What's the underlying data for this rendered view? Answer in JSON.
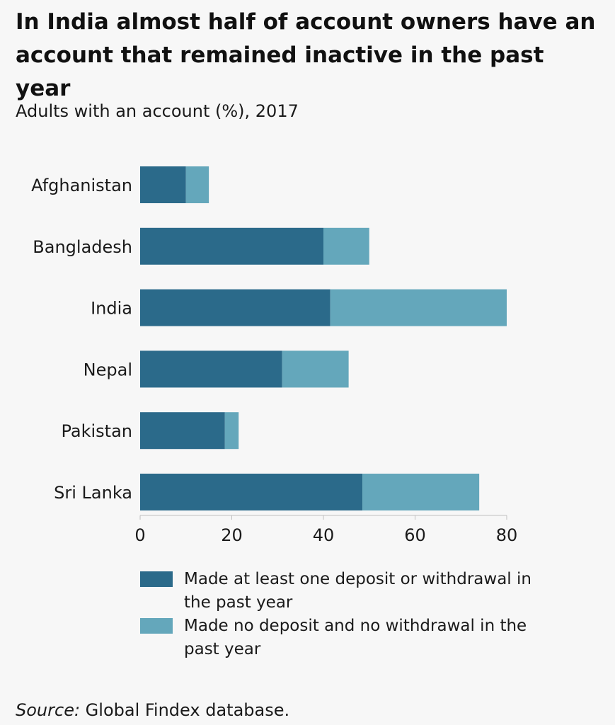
{
  "title": "In India almost half of account owners have an account that remained inactive in the past year",
  "subtitle": "Adults with an account (%), 2017",
  "source": {
    "label": "Source:",
    "text": " Global Findex database."
  },
  "colors": {
    "active": "#2b6a8a",
    "inactive": "#64a7bb",
    "axis": "#bfbfbf"
  },
  "chart_data": {
    "type": "bar",
    "orientation": "horizontal",
    "stacked": true,
    "categories": [
      "Afghanistan",
      "Bangladesh",
      "India",
      "Nepal",
      "Pakistan",
      "Sri Lanka"
    ],
    "series": [
      {
        "name": "Made at least one deposit or withdrawal in the past year",
        "values": [
          10,
          40,
          41.5,
          31,
          18.5,
          48.5
        ]
      },
      {
        "name": "Made no deposit and no withdrawal in the past year",
        "values": [
          5,
          10,
          38.5,
          14.5,
          3,
          25.5
        ]
      }
    ],
    "xlim": [
      0,
      80
    ],
    "xticks": [
      0,
      20,
      40,
      60,
      80
    ],
    "xlabel": "",
    "ylabel": "",
    "grid": false,
    "legend_position": "bottom"
  }
}
